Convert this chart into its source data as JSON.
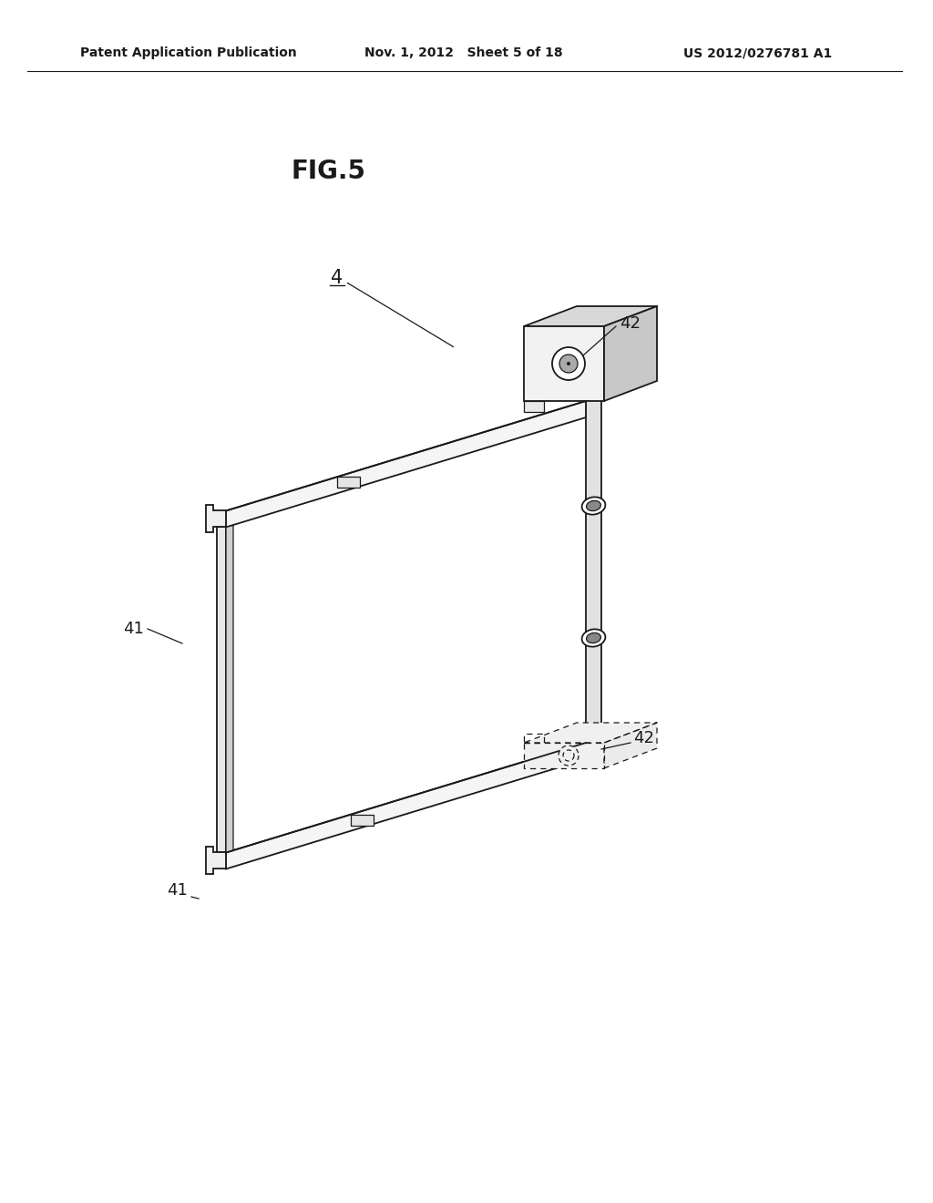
{
  "title": "FIG.5",
  "header_left": "Patent Application Publication",
  "header_mid": "Nov. 1, 2012   Sheet 5 of 18",
  "header_right": "US 2012/0276781 A1",
  "bg_color": "#ffffff",
  "line_color": "#1a1a1a",
  "label_4": "4",
  "label_41": "41",
  "label_42": "42",
  "fig_title_fontsize": 20,
  "header_fontsize": 10,
  "label_fontsize": 13
}
